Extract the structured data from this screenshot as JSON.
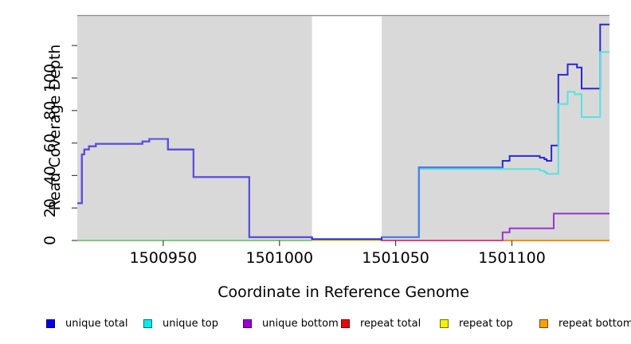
{
  "chart_data": {
    "type": "line",
    "subtype": "step-coverage-plot",
    "xlabel": "Coordinate in Reference Genome",
    "ylabel": "Read Coverage Depth",
    "xlim": [
      1500913,
      1501142
    ],
    "ylim": [
      0,
      138
    ],
    "plot_background": "#d9d9d9",
    "page_background": "#ffffff",
    "grid": false,
    "x_ticks": [
      {
        "value": 1500950,
        "label": "1500950"
      },
      {
        "value": 1501000,
        "label": "1501000"
      },
      {
        "value": 1501050,
        "label": "1501050"
      },
      {
        "value": 1501100,
        "label": "1501100"
      }
    ],
    "y_ticks": [
      {
        "value": 0,
        "label": "0"
      },
      {
        "value": 20,
        "label": "20"
      },
      {
        "value": 40,
        "label": "40"
      },
      {
        "value": 60,
        "label": "60"
      },
      {
        "value": 80,
        "label": "80"
      },
      {
        "value": 100,
        "label": "100"
      },
      {
        "value": 120,
        "label": ""
      }
    ],
    "gap_region": {
      "x_start": 1501014,
      "x_end": 1501044,
      "fill": "#ffffff",
      "note": "white no-data band"
    },
    "series": [
      {
        "name": "repeat top",
        "color": "#f0f024",
        "end": 1501142,
        "points": [
          [
            1500913,
            0
          ]
        ]
      },
      {
        "name": "repeat total",
        "color": "#dd2233",
        "end": 1501142,
        "points": [
          [
            1501044,
            0
          ]
        ]
      },
      {
        "name": "repeat bottom",
        "color": "#ff8c00",
        "end": 1501142,
        "points": [
          [
            1501096,
            0
          ]
        ]
      },
      {
        "name": "unique bottom",
        "color": "#9b33cc",
        "end": 1501142,
        "points": [
          [
            1500913,
            23
          ],
          [
            1500915,
            53
          ],
          [
            1500916,
            56
          ],
          [
            1500918,
            58
          ],
          [
            1500921,
            59.5
          ],
          [
            1500941,
            61
          ],
          [
            1500944,
            62.5
          ],
          [
            1500952,
            56
          ],
          [
            1500963,
            39
          ],
          [
            1500987,
            2
          ],
          [
            1501014,
            0.8
          ],
          [
            1501044,
            0
          ],
          [
            1501096,
            5
          ],
          [
            1501099,
            7.5
          ],
          [
            1501118,
            16.5
          ]
        ]
      },
      {
        "name": "unique total",
        "color": "#2a26d4",
        "end": 1501142,
        "points": [
          [
            1500913,
            23
          ],
          [
            1500915,
            53
          ],
          [
            1500916,
            56
          ],
          [
            1500918,
            58
          ],
          [
            1500921,
            59.5
          ],
          [
            1500941,
            61
          ],
          [
            1500944,
            62.5
          ],
          [
            1500952,
            56
          ],
          [
            1500963,
            39
          ],
          [
            1500987,
            2
          ],
          [
            1501014,
            0.8
          ],
          [
            1501044,
            2
          ],
          [
            1501060,
            45
          ],
          [
            1501096,
            49
          ],
          [
            1501099,
            52
          ],
          [
            1501112,
            51
          ],
          [
            1501114,
            50
          ],
          [
            1501115,
            49
          ],
          [
            1501117,
            58.5
          ],
          [
            1501120,
            102
          ],
          [
            1501124,
            108.5
          ],
          [
            1501128,
            106.5
          ],
          [
            1501130,
            93.5
          ],
          [
            1501138,
            133
          ]
        ]
      },
      {
        "name": "unique top",
        "color": "#55e2e2",
        "end": 1501142,
        "points": [
          [
            1501044,
            2
          ],
          [
            1501060,
            44
          ],
          [
            1501112,
            43
          ],
          [
            1501114,
            42
          ],
          [
            1501115,
            41
          ],
          [
            1501120,
            84
          ],
          [
            1501124,
            91.5
          ],
          [
            1501127,
            90
          ],
          [
            1501130,
            76
          ],
          [
            1501138,
            116
          ]
        ]
      }
    ],
    "overlap_blends": [
      {
        "name": "unique-top over repeat-top baseline",
        "color": "#7ec87e",
        "end": 1501014,
        "points": [
          [
            1500913,
            0
          ]
        ]
      },
      {
        "name": "repeat-total visible baseline",
        "color": "#dd4477",
        "end": 1501096,
        "points": [
          [
            1501044,
            0
          ]
        ]
      },
      {
        "name": "unique-total over unique-bottom",
        "color": "#5b51e0",
        "end": 1501014,
        "points": [
          [
            1500913,
            23
          ],
          [
            1500915,
            53
          ],
          [
            1500916,
            56
          ],
          [
            1500918,
            58
          ],
          [
            1500921,
            59.5
          ],
          [
            1500941,
            61
          ],
          [
            1500944,
            62.5
          ],
          [
            1500952,
            56
          ],
          [
            1500963,
            39
          ],
          [
            1500987,
            2
          ]
        ]
      },
      {
        "name": "unique-total over unique-top",
        "color": "#4a7be8",
        "end": 1501096,
        "points": [
          [
            1501044,
            2
          ],
          [
            1501060,
            45
          ]
        ]
      }
    ]
  },
  "legend": {
    "items": [
      {
        "label": "unique total",
        "color": "#0000f0"
      },
      {
        "label": "unique top",
        "color": "#00eeee"
      },
      {
        "label": "unique bottom",
        "color": "#9900dd"
      },
      {
        "label": "repeat total",
        "color": "#ee0000"
      },
      {
        "label": "repeat top",
        "color": "#f2f200"
      },
      {
        "label": "repeat bottom",
        "color": "#ffa000"
      }
    ]
  }
}
